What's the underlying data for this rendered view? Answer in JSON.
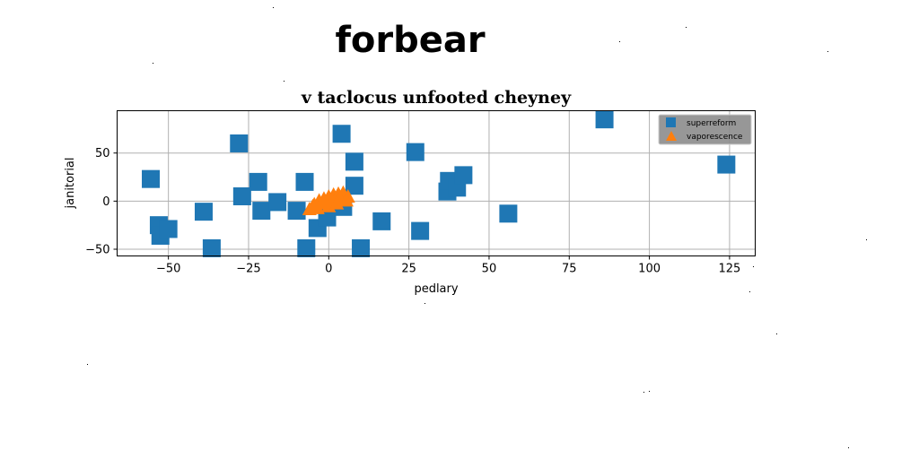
{
  "page_heading": "forbear",
  "chart_data": {
    "type": "scatter",
    "title": "v taclocus unfooted cheyney",
    "xlabel": "pedlary",
    "ylabel": "janitorial",
    "xlim": [
      -66,
      133
    ],
    "ylim": [
      -57,
      94
    ],
    "xticks": [
      -50,
      -25,
      0,
      25,
      50,
      75,
      100,
      125
    ],
    "yticks": [
      -50,
      0,
      50
    ],
    "xtick_labels": [
      "−50",
      "−25",
      "0",
      "25",
      "50",
      "75",
      "100",
      "125"
    ],
    "ytick_labels": [
      "−50",
      "0",
      "50"
    ],
    "grid": true,
    "legend_position": "top-right",
    "series": [
      {
        "name": "superreform",
        "marker": "square",
        "color": "#1f77b4",
        "points": [
          {
            "x": -55.5,
            "y": 23
          },
          {
            "x": -53,
            "y": -25
          },
          {
            "x": -52.5,
            "y": -36
          },
          {
            "x": -50,
            "y": -29
          },
          {
            "x": -39,
            "y": -11
          },
          {
            "x": -36.5,
            "y": -49
          },
          {
            "x": -28,
            "y": 60
          },
          {
            "x": -27,
            "y": 5
          },
          {
            "x": -22,
            "y": 20
          },
          {
            "x": -21,
            "y": -10
          },
          {
            "x": -16,
            "y": -1
          },
          {
            "x": -10,
            "y": -10
          },
          {
            "x": -7.5,
            "y": 20
          },
          {
            "x": -7,
            "y": -49
          },
          {
            "x": -3.5,
            "y": -28
          },
          {
            "x": -0.5,
            "y": -17
          },
          {
            "x": 4,
            "y": 70
          },
          {
            "x": 4.5,
            "y": -6
          },
          {
            "x": 8,
            "y": 41
          },
          {
            "x": 8,
            "y": 16
          },
          {
            "x": 10,
            "y": -49
          },
          {
            "x": 16.5,
            "y": -21
          },
          {
            "x": 27,
            "y": 51
          },
          {
            "x": 28.5,
            "y": -31
          },
          {
            "x": 37,
            "y": 10
          },
          {
            "x": 37.5,
            "y": 21
          },
          {
            "x": 40,
            "y": 14
          },
          {
            "x": 42,
            "y": 27
          },
          {
            "x": 56,
            "y": -13
          },
          {
            "x": 86,
            "y": 85
          },
          {
            "x": 124,
            "y": 38
          }
        ]
      },
      {
        "name": "vaporescence",
        "marker": "triangle",
        "color": "#ff7f0e",
        "points": [
          {
            "x": -6,
            "y": -9
          },
          {
            "x": -4.5,
            "y": -4
          },
          {
            "x": -3,
            "y": 0
          },
          {
            "x": -1.5,
            "y": 2
          },
          {
            "x": 0,
            "y": 4
          },
          {
            "x": 1.5,
            "y": 6
          },
          {
            "x": 3,
            "y": 7
          },
          {
            "x": 4.5,
            "y": 8
          },
          {
            "x": 6,
            "y": 4
          },
          {
            "x": -5,
            "y": -6
          },
          {
            "x": -2,
            "y": -3
          },
          {
            "x": 1,
            "y": 0
          },
          {
            "x": 3.5,
            "y": 2
          },
          {
            "x": 5.5,
            "y": 0
          },
          {
            "x": 0,
            "y": -6
          },
          {
            "x": -3.5,
            "y": -8
          },
          {
            "x": 2.5,
            "y": -3
          }
        ]
      }
    ]
  }
}
